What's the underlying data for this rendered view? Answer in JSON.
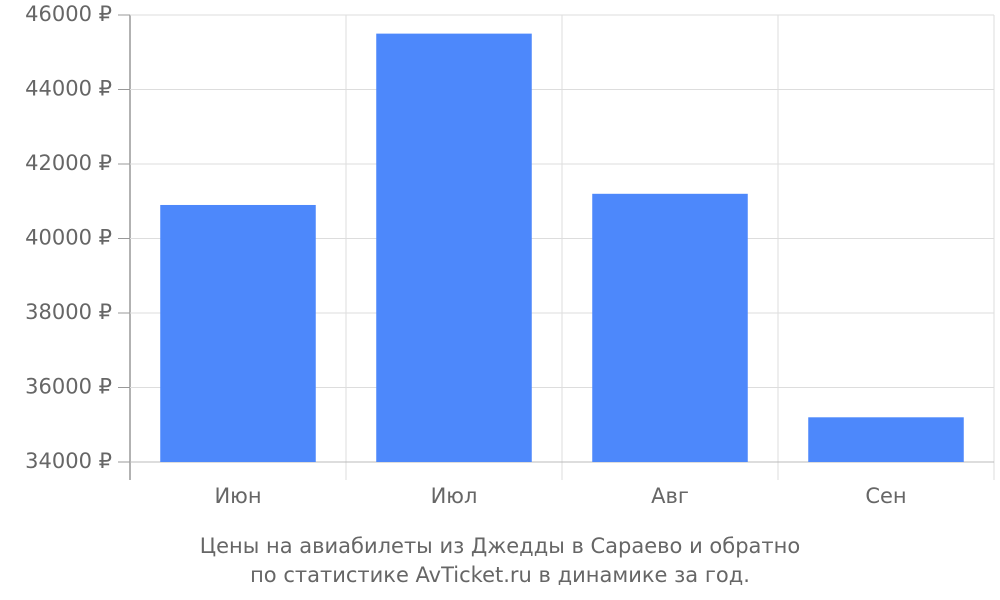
{
  "chart_data": {
    "type": "bar",
    "title": [
      "Цены на авиабилеты из Джедды в Сараево и обратно",
      "по статистике AvTicket.ru в динамике за год."
    ],
    "categories": [
      "Июн",
      "Июл",
      "Авг",
      "Сен"
    ],
    "values": [
      40900,
      45500,
      41200,
      35200
    ],
    "color": "#4d88fb",
    "ylim": [
      34000,
      46000
    ],
    "yticks": [
      {
        "value": 34000,
        "label": "34000 ₽"
      },
      {
        "value": 36000,
        "label": "36000 ₽"
      },
      {
        "value": 38000,
        "label": "38000 ₽"
      },
      {
        "value": 40000,
        "label": "40000 ₽"
      },
      {
        "value": 42000,
        "label": "42000 ₽"
      },
      {
        "value": 44000,
        "label": "44000 ₽"
      },
      {
        "value": 46000,
        "label": "46000 ₽"
      }
    ],
    "grid": true
  }
}
